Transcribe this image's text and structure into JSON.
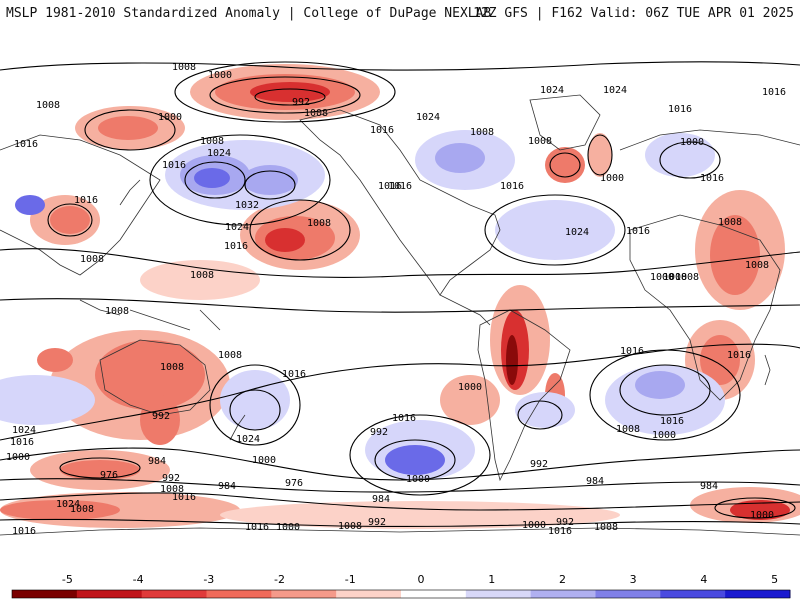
{
  "header": {
    "title_left": "MSLP 1981-2010 Standardized Anomaly | College of DuPage NEXLAB",
    "title_right": "12Z GFS | F162 Valid: 06Z TUE APR 01 2025"
  },
  "legend": {
    "ticks": [
      "-5",
      "-4",
      "-3",
      "-2",
      "-1",
      "0",
      "1",
      "2",
      "3",
      "4",
      "5"
    ],
    "colors": [
      "#7a0000",
      "#c0141a",
      "#e03a3a",
      "#f06a5a",
      "#f59a8a",
      "#fcd2c8",
      "#ffffff",
      "#d8d8f8",
      "#b0b0f0",
      "#8080e8",
      "#4a4ae0",
      "#1a1ad0"
    ]
  },
  "colors": {
    "neg_light": "#f6b0a0",
    "neg_mid": "#ee7a6a",
    "neg_strong": "#d83030",
    "neg_extreme": "#8a0a0a",
    "pos_light": "#d6d6fa",
    "pos_mid": "#a8a8f0",
    "pos_strong": "#6a6ae8",
    "contour": "#000000",
    "coast": "#333333"
  },
  "isobar_labels": [
    "1008",
    "1000",
    "1008",
    "992",
    "1016",
    "1000",
    "1008",
    "1016",
    "1024",
    "1032",
    "1024",
    "1016",
    "1008",
    "1016",
    "1008",
    "1008",
    "1008",
    "1008",
    "1016",
    "1008",
    "1024",
    "1016",
    "1000",
    "984",
    "992",
    "976",
    "1008",
    "1024",
    "1016",
    "976",
    "1000",
    "1008",
    "1016",
    "992",
    "984",
    "1016",
    "1008",
    "992",
    "1016",
    "1000",
    "1000",
    "984",
    "1024",
    "1024",
    "1016",
    "1008",
    "1000",
    "1016",
    "1016",
    "1024",
    "1016",
    "1008",
    "1000",
    "1016",
    "1016",
    "1008",
    "1000",
    "984",
    "992",
    "984",
    "1000",
    "992",
    "1000",
    "1008",
    "1016",
    "1016",
    "1024",
    "1016",
    "1024",
    "1008",
    "1016",
    "1008",
    "1008",
    "1000",
    "1016",
    "1008",
    "1000",
    "1008",
    "992",
    "1016"
  ]
}
